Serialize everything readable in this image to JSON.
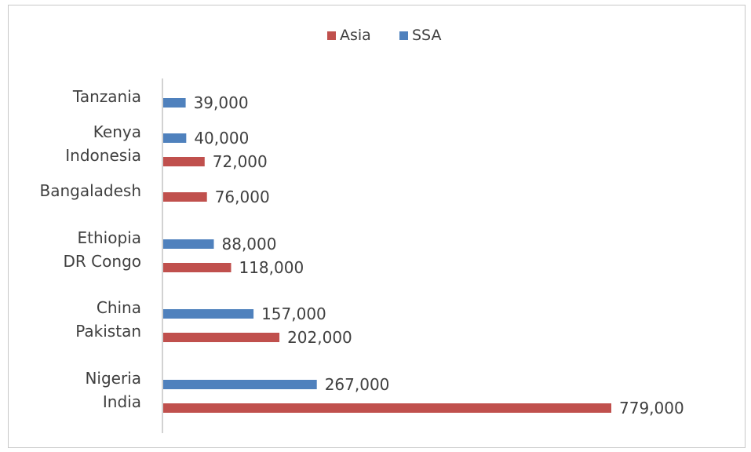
{
  "chart_data": {
    "type": "bar",
    "orientation": "horizontal",
    "title": "",
    "xlabel": "",
    "ylabel": "",
    "xlim": [
      0,
      779000
    ],
    "grid": false,
    "legend_position": "top-center",
    "series": [
      {
        "name": "Asia",
        "color": "#c0504d"
      },
      {
        "name": "SSA",
        "color": "#4f81bd"
      }
    ],
    "categories": [
      "Tanzania",
      "Kenya",
      "Indonesia",
      "Bangaladesh",
      "Ethiopia",
      "DR Congo",
      "China",
      "Pakistan",
      "Nigeria",
      "India"
    ],
    "values": [
      39000,
      40000,
      72000,
      76000,
      88000,
      118000,
      157000,
      202000,
      267000,
      779000
    ],
    "value_labels": [
      "39,000",
      "40,000",
      "72,000",
      "76,000",
      "88,000",
      "118,000",
      "157,000",
      "202,000",
      "267,000",
      "779,000"
    ],
    "category_series": [
      "SSA",
      "SSA",
      "Asia",
      "Asia",
      "SSA",
      "Asia",
      "SSA",
      "Asia",
      "SSA",
      "Asia"
    ]
  }
}
